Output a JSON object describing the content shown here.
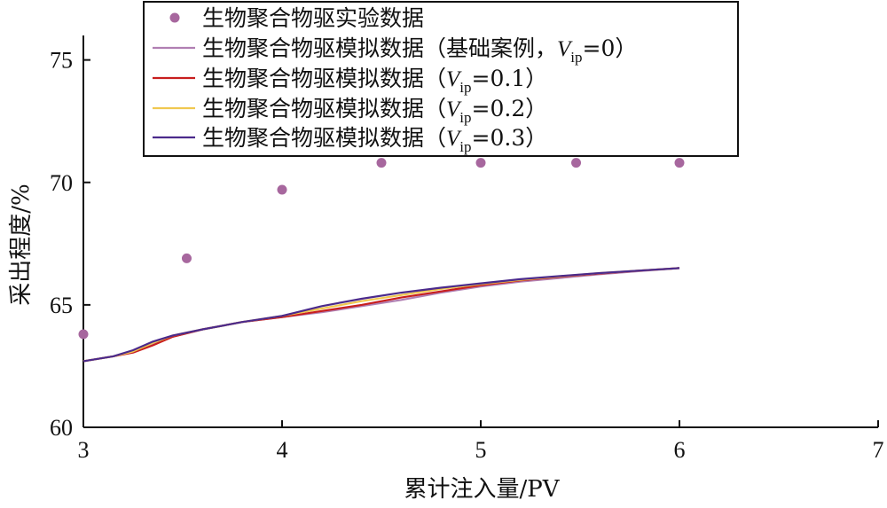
{
  "chart_data": {
    "type": "line",
    "title": "",
    "xlabel": "累计注入量/PV",
    "ylabel": "采出程度/%",
    "xlim": [
      3,
      7
    ],
    "ylim": [
      60,
      76
    ],
    "xticks": [
      3,
      4,
      5,
      6,
      7
    ],
    "yticks": [
      60,
      65,
      70,
      75
    ],
    "grid": false,
    "legend_position": "top-center",
    "scatter": {
      "name": "生物聚合物驱实验数据",
      "color": "#a7679e",
      "x": [
        3.0,
        3.52,
        4.0,
        4.5,
        5.0,
        5.48,
        6.0
      ],
      "y": [
        63.8,
        66.9,
        69.7,
        70.8,
        70.8,
        70.8,
        70.8
      ]
    },
    "series": [
      {
        "name": "生物聚合物驱模拟数据（基础案例，Vip=0）",
        "name_parts": {
          "pre": "生物聚合物驱模拟数据（基础案例，",
          "var": "V",
          "sub": "ip",
          "post": "=0）"
        },
        "color": "#b07fb2",
        "x": [
          3.0,
          3.15,
          3.25,
          3.35,
          3.45,
          3.6,
          3.8,
          4.0,
          4.2,
          4.4,
          4.6,
          4.8,
          5.0,
          5.2,
          5.4,
          5.6,
          5.8,
          6.0
        ],
        "y": [
          62.7,
          62.9,
          63.1,
          63.4,
          63.7,
          64.0,
          64.3,
          64.5,
          64.7,
          64.95,
          65.2,
          65.5,
          65.75,
          65.95,
          66.1,
          66.25,
          66.38,
          66.5
        ]
      },
      {
        "name": "生物聚合物驱模拟数据（Vip=0.1）",
        "name_parts": {
          "pre": "生物聚合物驱模拟数据（",
          "var": "V",
          "sub": "ip",
          "post": "=0.1）"
        },
        "color": "#c81e1e",
        "x": [
          3.0,
          3.15,
          3.25,
          3.35,
          3.45,
          3.6,
          3.8,
          4.0,
          4.2,
          4.4,
          4.6,
          4.8,
          5.0,
          5.2,
          5.4,
          5.6,
          5.8,
          6.0
        ],
        "y": [
          62.7,
          62.9,
          63.05,
          63.35,
          63.7,
          64.0,
          64.3,
          64.5,
          64.75,
          65.0,
          65.3,
          65.55,
          65.8,
          66.0,
          66.15,
          66.28,
          66.4,
          66.5
        ]
      },
      {
        "name": "生物聚合物驱模拟数据（Vip=0.2）",
        "name_parts": {
          "pre": "生物聚合物驱模拟数据（",
          "var": "V",
          "sub": "ip",
          "post": "=0.2）"
        },
        "color": "#f0c850",
        "x": [
          3.0,
          3.15,
          3.25,
          3.35,
          3.45,
          3.6,
          3.8,
          4.0,
          4.2,
          4.4,
          4.6,
          4.8,
          5.0,
          5.2,
          5.4,
          5.6,
          5.8,
          6.0
        ],
        "y": [
          62.7,
          62.9,
          63.1,
          63.45,
          63.75,
          64.0,
          64.3,
          64.55,
          64.85,
          65.15,
          65.4,
          65.65,
          65.85,
          66.02,
          66.17,
          66.3,
          66.4,
          66.5
        ]
      },
      {
        "name": "生物聚合物驱模拟数据（Vip=0.3）",
        "name_parts": {
          "pre": "生物聚合物驱模拟数据（",
          "var": "V",
          "sub": "ip",
          "post": "=0.3）"
        },
        "color": "#4b2a8c",
        "x": [
          3.0,
          3.15,
          3.25,
          3.35,
          3.45,
          3.6,
          3.8,
          4.0,
          4.2,
          4.4,
          4.6,
          4.8,
          5.0,
          5.2,
          5.4,
          5.6,
          5.8,
          6.0
        ],
        "y": [
          62.7,
          62.9,
          63.15,
          63.5,
          63.75,
          64.0,
          64.3,
          64.55,
          64.95,
          65.25,
          65.5,
          65.7,
          65.88,
          66.05,
          66.18,
          66.3,
          66.4,
          66.5
        ]
      }
    ]
  }
}
